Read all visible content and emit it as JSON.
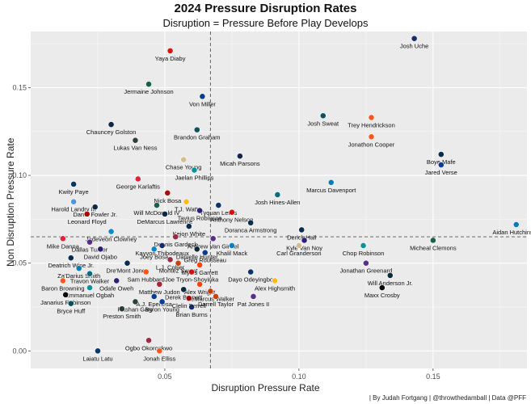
{
  "title": "2024 Pressure Disruption Rates",
  "subtitle": "Disruption =  Pressure Before Play Develops",
  "caption": "| By Judah Fortgang | @throwthedamball | Data @PFF",
  "chart_data": {
    "type": "scatter",
    "title": "2024 Pressure Disruption Rates",
    "subtitle": "Disruption =  Pressure Before Play Develops",
    "xlabel": "Disruption Pressure Rate",
    "ylabel": "Non Disruption Pressure Rate",
    "xlim": [
      0.0,
      0.185
    ],
    "ylim": [
      -0.01,
      0.182
    ],
    "xticks": [
      0.05,
      0.1,
      0.15
    ],
    "xtick_labels": [
      "0.05",
      "0.10",
      "0.15"
    ],
    "yticks": [
      0.0,
      0.05,
      0.1,
      0.15
    ],
    "ytick_labels": [
      "0.00",
      "0.05",
      "0.10",
      "0.15"
    ],
    "grid": true,
    "reference_lines": {
      "vertical_x": 0.067,
      "horizontal_y": 0.065,
      "style": "dashed"
    },
    "points": [
      {
        "name": "Josh Uche",
        "x": 0.143,
        "y": 0.178,
        "team_color": "#0B2265"
      },
      {
        "name": "Yaya Diaby",
        "x": 0.052,
        "y": 0.171,
        "team_color": "#D50A0A"
      },
      {
        "name": "Jermaine Johnson",
        "x": 0.044,
        "y": 0.152,
        "team_color": "#125740"
      },
      {
        "name": "Von Miller",
        "x": 0.064,
        "y": 0.145,
        "team_color": "#00338D"
      },
      {
        "name": "Trey Hendrickson",
        "x": 0.127,
        "y": 0.133,
        "team_color": "#FB4F14"
      },
      {
        "name": "Josh Sweat",
        "x": 0.109,
        "y": 0.134,
        "team_color": "#004C54"
      },
      {
        "name": "Brandon Graham",
        "x": 0.062,
        "y": 0.126,
        "team_color": "#004C54"
      },
      {
        "name": "Chauncey Golston",
        "x": 0.03,
        "y": 0.129,
        "team_color": "#041E42"
      },
      {
        "name": "Lukas Van Ness",
        "x": 0.039,
        "y": 0.12,
        "team_color": "#203731"
      },
      {
        "name": "Jonathon Cooper",
        "x": 0.127,
        "y": 0.122,
        "team_color": "#FB4F14"
      },
      {
        "name": "Boye Mafe",
        "x": 0.153,
        "y": 0.112,
        "team_color": "#002244"
      },
      {
        "name": "Micah Parsons",
        "x": 0.078,
        "y": 0.111,
        "team_color": "#041E42"
      },
      {
        "name": "Chase Young",
        "x": 0.057,
        "y": 0.109,
        "team_color": "#D3BC8D"
      },
      {
        "name": "Jared Verse",
        "x": 0.153,
        "y": 0.106,
        "team_color": "#003594"
      },
      {
        "name": "Jaelan Phillips",
        "x": 0.061,
        "y": 0.103,
        "team_color": "#008E97"
      },
      {
        "name": "Marcus Davenport",
        "x": 0.112,
        "y": 0.096,
        "team_color": "#0076B6"
      },
      {
        "name": "Kwity Paye",
        "x": 0.016,
        "y": 0.095,
        "team_color": "#002C5F"
      },
      {
        "name": "George Karlaftis",
        "x": 0.04,
        "y": 0.098,
        "team_color": "#E31837"
      },
      {
        "name": "Josh Hines-Allen",
        "x": 0.092,
        "y": 0.089,
        "team_color": "#006778"
      },
      {
        "name": "Nick Bosa",
        "x": 0.051,
        "y": 0.09,
        "team_color": "#AA0000"
      },
      {
        "name": "T.J. Watt",
        "x": 0.058,
        "y": 0.085,
        "team_color": "#FFB612"
      },
      {
        "name": "Tyquan Lewis",
        "x": 0.07,
        "y": 0.083,
        "team_color": "#002C5F"
      },
      {
        "name": "Harold Landry III",
        "x": 0.016,
        "y": 0.085,
        "team_color": "#4B92DB"
      },
      {
        "name": "Will McDonald IV",
        "x": 0.047,
        "y": 0.083,
        "team_color": "#125740"
      },
      {
        "name": "Dante Fowler Jr.",
        "x": 0.024,
        "y": 0.082,
        "team_color": "#041E42"
      },
      {
        "name": "DeMarcus Lawrence",
        "x": 0.05,
        "y": 0.078,
        "team_color": "#041E42"
      },
      {
        "name": "Tavius Robinson",
        "x": 0.063,
        "y": 0.08,
        "team_color": "#241773"
      },
      {
        "name": "Anthony Nelson",
        "x": 0.075,
        "y": 0.079,
        "team_color": "#D50A0A"
      },
      {
        "name": "Leonard Floyd",
        "x": 0.021,
        "y": 0.078,
        "team_color": "#AA0000"
      },
      {
        "name": "Doranca Armstrong",
        "x": 0.082,
        "y": 0.073,
        "team_color": "#002244"
      },
      {
        "name": "Derick Hall",
        "x": 0.101,
        "y": 0.069,
        "team_color": "#002244"
      },
      {
        "name": "Aidan Hutchinson",
        "x": 0.181,
        "y": 0.072,
        "team_color": "#0076B6"
      },
      {
        "name": "Jadeveon Clowney",
        "x": 0.03,
        "y": 0.068,
        "team_color": "#0085CA"
      },
      {
        "name": "Keion White",
        "x": 0.059,
        "y": 0.071,
        "team_color": "#002244"
      },
      {
        "name": "Mike Danna",
        "x": 0.012,
        "y": 0.064,
        "team_color": "#E31837"
      },
      {
        "name": "Dennis Gardeck",
        "x": 0.054,
        "y": 0.065,
        "team_color": "#97233F"
      },
      {
        "name": "Andrew Van Ginkel",
        "x": 0.068,
        "y": 0.064,
        "team_color": "#4F2683"
      },
      {
        "name": "Kyle Van Noy",
        "x": 0.102,
        "y": 0.063,
        "team_color": "#241773"
      },
      {
        "name": "Micheal Clemons",
        "x": 0.15,
        "y": 0.063,
        "team_color": "#125740"
      },
      {
        "name": "Dallas Turner",
        "x": 0.022,
        "y": 0.062,
        "team_color": "#4F2683"
      },
      {
        "name": "Kayvon Thibodeaux",
        "x": 0.049,
        "y": 0.06,
        "team_color": "#0B2265"
      },
      {
        "name": "Danielle Hunter",
        "x": 0.062,
        "y": 0.058,
        "team_color": "#03202F"
      },
      {
        "name": "Khalil Mack",
        "x": 0.075,
        "y": 0.06,
        "team_color": "#0080C6"
      },
      {
        "name": "Chop Robinson",
        "x": 0.124,
        "y": 0.06,
        "team_color": "#008E97"
      },
      {
        "name": "Carl Granderson",
        "x": 0.1,
        "y": 0.06,
        "team_color": "#D3BC8D"
      },
      {
        "name": "David Ojabo",
        "x": 0.026,
        "y": 0.058,
        "team_color": "#241773"
      },
      {
        "name": "Joey Bosa",
        "x": 0.046,
        "y": 0.058,
        "team_color": "#0080C6"
      },
      {
        "name": "Greg Rousseau",
        "x": 0.065,
        "y": 0.056,
        "team_color": "#00338D"
      },
      {
        "name": "Deatrich Wise Jr.",
        "x": 0.015,
        "y": 0.053,
        "team_color": "#002244"
      },
      {
        "name": "L.J. Collier",
        "x": 0.052,
        "y": 0.052,
        "team_color": "#97233F"
      },
      {
        "name": "Montez Sweat",
        "x": 0.055,
        "y": 0.05,
        "team_color": "#C83803"
      },
      {
        "name": "Myles Garrett",
        "x": 0.063,
        "y": 0.049,
        "team_color": "#FF3C00"
      },
      {
        "name": "Dre'Mont Jones",
        "x": 0.036,
        "y": 0.05,
        "team_color": "#002244"
      },
      {
        "name": "Jonathan Greenard",
        "x": 0.125,
        "y": 0.05,
        "team_color": "#4F2683"
      },
      {
        "name": "Za'Darius Smith",
        "x": 0.018,
        "y": 0.047,
        "team_color": "#0076B6"
      },
      {
        "name": "Joe Tryon-Shoyinka",
        "x": 0.06,
        "y": 0.045,
        "team_color": "#D50A0A"
      },
      {
        "name": "Dayo Odeyingbo",
        "x": 0.082,
        "y": 0.045,
        "team_color": "#002C5F"
      },
      {
        "name": "Travon Walker",
        "x": 0.022,
        "y": 0.044,
        "team_color": "#006778"
      },
      {
        "name": "Sam Hubbard",
        "x": 0.043,
        "y": 0.045,
        "team_color": "#FB4F14"
      },
      {
        "name": "Will Anderson Jr.",
        "x": 0.134,
        "y": 0.043,
        "team_color": "#03202F"
      },
      {
        "name": "Baron Browning",
        "x": 0.012,
        "y": 0.04,
        "team_color": "#FB4F14"
      },
      {
        "name": "Odafe Oweh",
        "x": 0.032,
        "y": 0.04,
        "team_color": "#241773"
      },
      {
        "name": "Matthew Judon",
        "x": 0.048,
        "y": 0.038,
        "team_color": "#A71930"
      },
      {
        "name": "Alex Wright",
        "x": 0.063,
        "y": 0.038,
        "team_color": "#FF3C00"
      },
      {
        "name": "Alex Highsmith",
        "x": 0.091,
        "y": 0.04,
        "team_color": "#FFB612"
      },
      {
        "name": "Maxx Crosby",
        "x": 0.131,
        "y": 0.036,
        "team_color": "#000000"
      },
      {
        "name": "Emmanuel Ogbah",
        "x": 0.022,
        "y": 0.036,
        "team_color": "#008E97"
      },
      {
        "name": "Derek Barnett",
        "x": 0.057,
        "y": 0.035,
        "team_color": "#03202F"
      },
      {
        "name": "DeMarcus Walker",
        "x": 0.067,
        "y": 0.034,
        "team_color": "#C83803"
      },
      {
        "name": "Janarius Robinson",
        "x": 0.013,
        "y": 0.032,
        "team_color": "#000000"
      },
      {
        "name": "A.J. Epenesa",
        "x": 0.046,
        "y": 0.031,
        "team_color": "#00338D"
      },
      {
        "name": "Clelin Ferrell",
        "x": 0.059,
        "y": 0.03,
        "team_color": "#AA0000"
      },
      {
        "name": "Darrell Taylor",
        "x": 0.069,
        "y": 0.031,
        "team_color": "#C83803"
      },
      {
        "name": "Pat Jones II",
        "x": 0.083,
        "y": 0.031,
        "team_color": "#4F2683"
      },
      {
        "name": "Rashan Gary",
        "x": 0.039,
        "y": 0.028,
        "team_color": "#203731"
      },
      {
        "name": "Byron Young",
        "x": 0.049,
        "y": 0.028,
        "team_color": "#003594"
      },
      {
        "name": "Bryce Huff",
        "x": 0.015,
        "y": 0.027,
        "team_color": "#004C54"
      },
      {
        "name": "Brian Burns",
        "x": 0.06,
        "y": 0.025,
        "team_color": "#0B2265"
      },
      {
        "name": "Preston Smith",
        "x": 0.034,
        "y": 0.024,
        "team_color": "#203731"
      },
      {
        "name": "Ogbo Okoronkwo",
        "x": 0.044,
        "y": 0.006,
        "team_color": "#97233F"
      },
      {
        "name": "Laiatu Latu",
        "x": 0.025,
        "y": 0.0,
        "team_color": "#002C5F"
      },
      {
        "name": "Jonah Elliss",
        "x": 0.048,
        "y": 0.0,
        "team_color": "#FB4F14"
      }
    ]
  }
}
